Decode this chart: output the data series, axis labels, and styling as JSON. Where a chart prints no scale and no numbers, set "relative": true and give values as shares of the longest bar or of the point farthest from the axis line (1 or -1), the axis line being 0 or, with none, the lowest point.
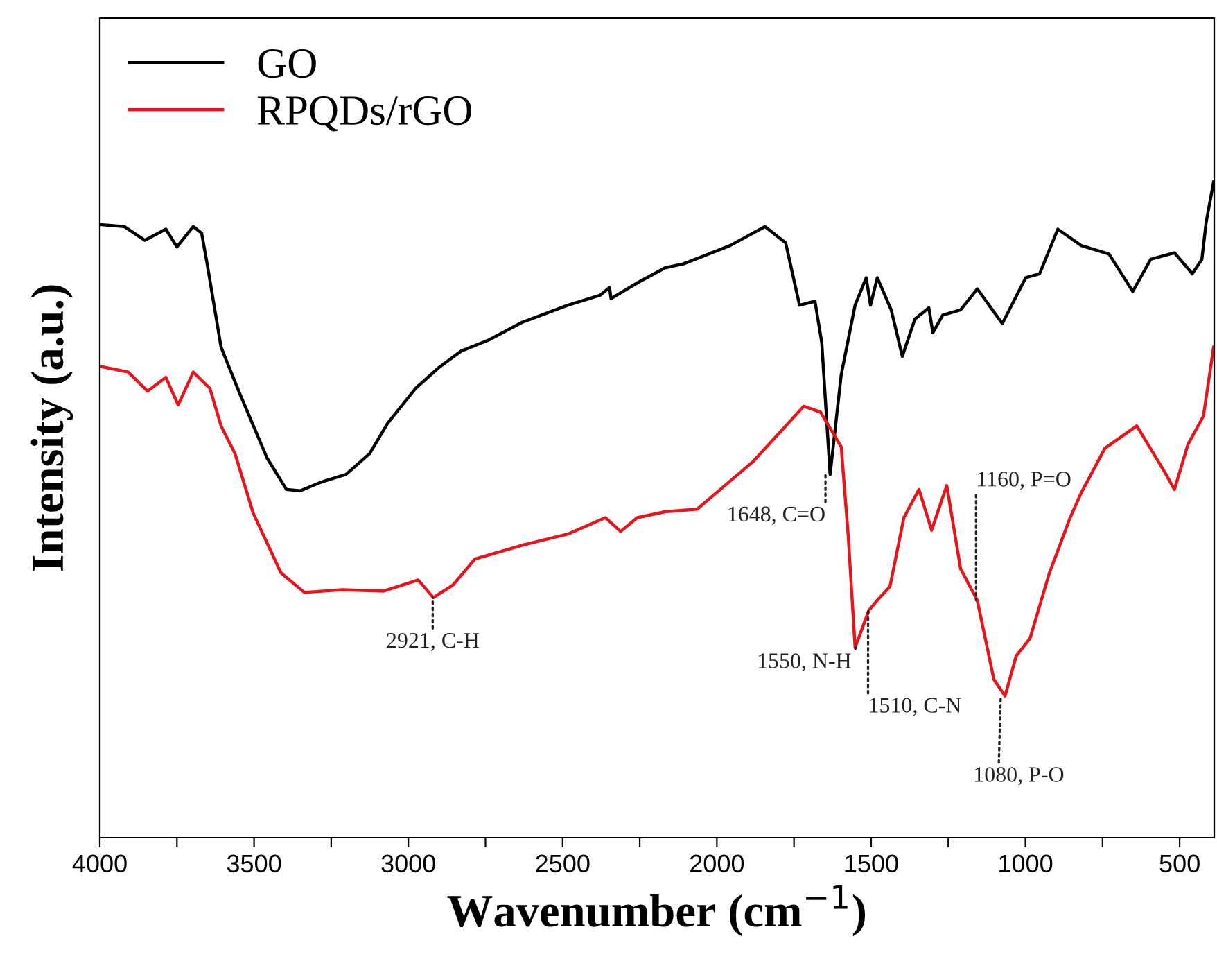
{
  "chart_data": {
    "type": "line",
    "relative": true,
    "xlabel": "Wavenumber (cm$^{−1}$)",
    "ylabel": "Intensity (a.u.)",
    "legend": "top left",
    "grid": false,
    "tick_labels": "x",
    "line_style": "solid",
    "marker": "none",
    "xlim": [
      4000,
      388
    ],
    "xticks": [
      4000,
      {
        "value": 3750,
        "label": null
      },
      3500,
      {
        "value": 3250,
        "label": null
      },
      3000,
      {
        "value": 2750,
        "label": null
      },
      2500,
      {
        "value": 2250,
        "label": null
      },
      2000,
      {
        "value": 1750,
        "label": null
      },
      1500,
      {
        "value": 1250,
        "label": null
      },
      1000,
      {
        "value": 750,
        "label": null
      },
      500
    ],
    "series": [
      {
        "name": "GO",
        "color": "#000000",
        "x": [
          4000,
          3921,
          3854,
          3786,
          3750,
          3697,
          3670,
          3652,
          3607,
          3548,
          3458,
          3395,
          3350,
          3278,
          3202,
          3125,
          3067,
          2977,
          2901,
          2829,
          2739,
          2631,
          2483,
          2379,
          2348,
          2343,
          2258,
          2168,
          2109,
          1957,
          1844,
          1777,
          1732,
          1682,
          1660,
          1633,
          1597,
          1552,
          1516,
          1502,
          1480,
          1435,
          1399,
          1358,
          1313,
          1300,
          1268,
          1210,
          1156,
          1075,
          999,
          954,
          895,
          819,
          729,
          652,
          594,
          517,
          459,
          428,
          414,
          390
        ],
        "values": [
          0.935,
          0.932,
          0.911,
          0.928,
          0.901,
          0.932,
          0.922,
          0.875,
          0.748,
          0.679,
          0.579,
          0.531,
          0.529,
          0.543,
          0.554,
          0.586,
          0.632,
          0.685,
          0.717,
          0.742,
          0.759,
          0.786,
          0.812,
          0.827,
          0.839,
          0.822,
          0.846,
          0.869,
          0.875,
          0.903,
          0.932,
          0.907,
          0.812,
          0.818,
          0.755,
          0.554,
          0.706,
          0.812,
          0.854,
          0.812,
          0.854,
          0.805,
          0.734,
          0.791,
          0.808,
          0.77,
          0.797,
          0.805,
          0.837,
          0.784,
          0.854,
          0.86,
          0.928,
          0.903,
          0.89,
          0.833,
          0.882,
          0.892,
          0.86,
          0.882,
          0.939,
          1.0
        ]
      },
      {
        "name": "RPQDs/rGO",
        "color": "#e8141c",
        "x": [
          4000,
          3908,
          3845,
          3786,
          3746,
          3697,
          3643,
          3607,
          3562,
          3503,
          3413,
          3337,
          3215,
          3080,
          2968,
          2919,
          2856,
          2784,
          2631,
          2483,
          2361,
          2312,
          2258,
          2168,
          2064,
          1884,
          1718,
          1664,
          1597,
          1574,
          1552,
          1507,
          1480,
          1439,
          1394,
          1345,
          1304,
          1255,
          1210,
          1156,
          1102,
          1066,
          1030,
          985,
          922,
          855,
          819,
          742,
          639,
          549,
          517,
          473,
          423,
          390
        ],
        "values": [
          0.719,
          0.71,
          0.681,
          0.702,
          0.66,
          0.71,
          0.685,
          0.628,
          0.586,
          0.495,
          0.404,
          0.374,
          0.378,
          0.376,
          0.393,
          0.366,
          0.385,
          0.425,
          0.446,
          0.463,
          0.488,
          0.467,
          0.488,
          0.497,
          0.501,
          0.573,
          0.658,
          0.649,
          0.596,
          0.459,
          0.29,
          0.347,
          0.362,
          0.383,
          0.488,
          0.531,
          0.469,
          0.537,
          0.41,
          0.362,
          0.241,
          0.216,
          0.277,
          0.304,
          0.404,
          0.488,
          0.526,
          0.594,
          0.628,
          0.558,
          0.531,
          0.6,
          0.643,
          0.748
        ]
      }
    ],
    "annotations": [
      {
        "text": "2921, C-H",
        "x": 2921,
        "y": 0.366
      },
      {
        "text": "1648, C=O",
        "x": 1648,
        "y": 0.554
      },
      {
        "text": "1550, N-H",
        "x": 1550,
        "y": 0.29
      },
      {
        "text": "1510, C-N",
        "x": 1510,
        "y": 0.347
      },
      {
        "text": "1160, P=O",
        "x": 1160,
        "y": 0.362
      },
      {
        "text": "1080, P-O",
        "x": 1080,
        "y": 0.216
      }
    ]
  }
}
